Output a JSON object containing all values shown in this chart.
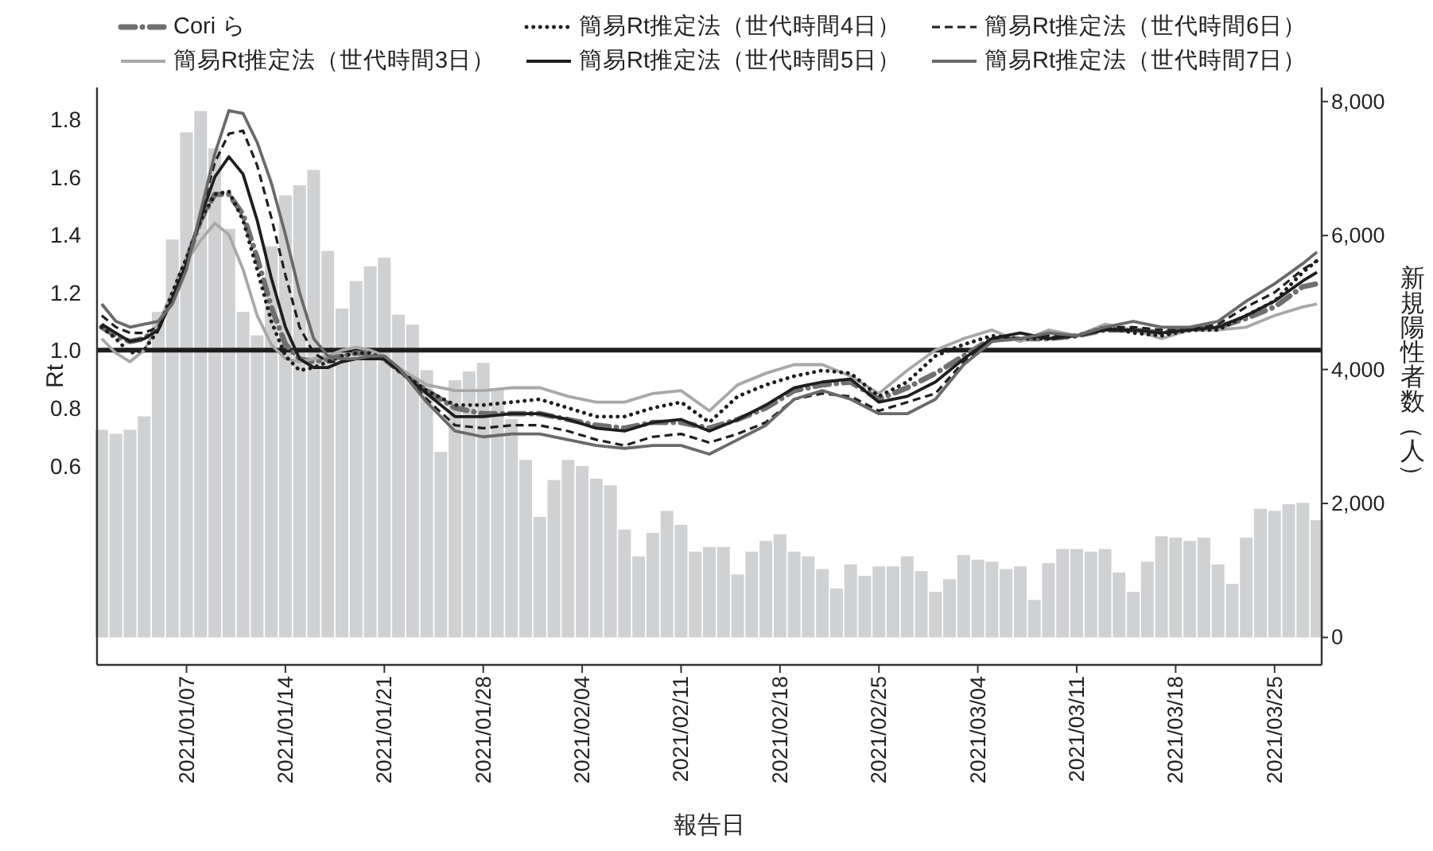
{
  "chart_data": {
    "type": "line",
    "xlabel": "報告日",
    "ylabel": "Rt",
    "y2label": "新規陽性者数（人）",
    "legend": "top",
    "x": [
      "2021-01-01",
      "2021-01-02",
      "2021-01-03",
      "2021-01-04",
      "2021-01-05",
      "2021-01-06",
      "2021-01-07",
      "2021-01-08",
      "2021-01-09",
      "2021-01-10",
      "2021-01-11",
      "2021-01-12",
      "2021-01-13",
      "2021-01-14",
      "2021-01-15",
      "2021-01-16",
      "2021-01-17",
      "2021-01-18",
      "2021-01-19",
      "2021-01-20",
      "2021-01-21",
      "2021-01-22",
      "2021-01-24",
      "2021-01-26",
      "2021-01-28",
      "2021-01-30",
      "2021-02-01",
      "2021-02-03",
      "2021-02-05",
      "2021-02-07",
      "2021-02-09",
      "2021-02-11",
      "2021-02-13",
      "2021-02-15",
      "2021-02-17",
      "2021-02-19",
      "2021-02-21",
      "2021-02-23",
      "2021-02-25",
      "2021-02-27",
      "2021-03-01",
      "2021-03-03",
      "2021-03-05",
      "2021-03-07",
      "2021-03-09",
      "2021-03-11",
      "2021-03-13",
      "2021-03-15",
      "2021-03-17",
      "2021-03-19",
      "2021-03-21",
      "2021-03-23",
      "2021-03-25",
      "2021-03-27",
      "2021-03-28"
    ],
    "xlim": [
      "2020-12-31T16:00",
      "2021-03-28T08:00"
    ],
    "xticks": [
      {
        "value": "2021-01-07",
        "label": "2021/01/07"
      },
      {
        "value": "2021-01-14",
        "label": "2021/01/14"
      },
      {
        "value": "2021-01-21",
        "label": "2021/01/21"
      },
      {
        "value": "2021-01-28",
        "label": "2021/01/28"
      },
      {
        "value": "2021-02-04",
        "label": "2021/02/04"
      },
      {
        "value": "2021-02-11",
        "label": "2021/02/11"
      },
      {
        "value": "2021-02-18",
        "label": "2021/02/18"
      },
      {
        "value": "2021-02-25",
        "label": "2021/02/25"
      },
      {
        "value": "2021-03-04",
        "label": "2021/03/04"
      },
      {
        "value": "2021-03-11",
        "label": "2021/03/11"
      },
      {
        "value": "2021-03-18",
        "label": "2021/03/18"
      },
      {
        "value": "2021-03-25",
        "label": "2021/03/25"
      }
    ],
    "ylim": [
      -0.09,
      1.91
    ],
    "yticks": [
      {
        "value": 0.6,
        "label": "0.6"
      },
      {
        "value": 0.8,
        "label": "0.8"
      },
      {
        "value": 1.0,
        "label": "1.0"
      },
      {
        "value": 1.2,
        "label": "1.2"
      },
      {
        "value": 1.4,
        "label": "1.4"
      },
      {
        "value": 1.6,
        "label": "1.6"
      },
      {
        "value": 1.8,
        "label": "1.8"
      }
    ],
    "y2lim": [
      -410,
      8210
    ],
    "y2ticks": [
      {
        "value": 0,
        "label": "0"
      },
      {
        "value": 2000,
        "label": "2,000"
      },
      {
        "value": 4000,
        "label": "4,000"
      },
      {
        "value": 6000,
        "label": "6,000"
      },
      {
        "value": 8000,
        "label": "8,000"
      }
    ],
    "ref_lines": [
      {
        "axis": "y",
        "value": 1.0,
        "color": "#1e1e1e"
      }
    ],
    "series": [
      {
        "type": "bar",
        "axis": "y2",
        "color": "#d0d1d3",
        "x": [
          "2021-01-01",
          "2021-01-02",
          "2021-01-03",
          "2021-01-04",
          "2021-01-05",
          "2021-01-06",
          "2021-01-07",
          "2021-01-08",
          "2021-01-09",
          "2021-01-10",
          "2021-01-11",
          "2021-01-12",
          "2021-01-13",
          "2021-01-14",
          "2021-01-15",
          "2021-01-16",
          "2021-01-17",
          "2021-01-18",
          "2021-01-19",
          "2021-01-20",
          "2021-01-21",
          "2021-01-22",
          "2021-01-23",
          "2021-01-24",
          "2021-01-25",
          "2021-01-26",
          "2021-01-27",
          "2021-01-28",
          "2021-01-29",
          "2021-01-30",
          "2021-01-31",
          "2021-02-01",
          "2021-02-02",
          "2021-02-03",
          "2021-02-04",
          "2021-02-05",
          "2021-02-06",
          "2021-02-07",
          "2021-02-08",
          "2021-02-09",
          "2021-02-10",
          "2021-02-11",
          "2021-02-12",
          "2021-02-13",
          "2021-02-14",
          "2021-02-15",
          "2021-02-16",
          "2021-02-17",
          "2021-02-18",
          "2021-02-19",
          "2021-02-20",
          "2021-02-21",
          "2021-02-22",
          "2021-02-23",
          "2021-02-24",
          "2021-02-25",
          "2021-02-26",
          "2021-02-27",
          "2021-02-28",
          "2021-03-01",
          "2021-03-02",
          "2021-03-03",
          "2021-03-04",
          "2021-03-05",
          "2021-03-06",
          "2021-03-07",
          "2021-03-08",
          "2021-03-09",
          "2021-03-10",
          "2021-03-11",
          "2021-03-12",
          "2021-03-13",
          "2021-03-14",
          "2021-03-15",
          "2021-03-16",
          "2021-03-17",
          "2021-03-18",
          "2021-03-19",
          "2021-03-20",
          "2021-03-21",
          "2021-03-22",
          "2021-03-23",
          "2021-03-24",
          "2021-03-25",
          "2021-03-26",
          "2021-03-27",
          "2021-03-28"
        ],
        "values": [
          3100,
          3040,
          3100,
          3300,
          4860,
          5940,
          7540,
          7860,
          7300,
          6100,
          4860,
          4510,
          5840,
          6600,
          6750,
          6980,
          5770,
          4910,
          5320,
          5540,
          5670,
          4820,
          4670,
          3990,
          2770,
          3840,
          3970,
          4100,
          3700,
          3260,
          2650,
          1800,
          2350,
          2650,
          2560,
          2370,
          2270,
          1610,
          1210,
          1560,
          1890,
          1680,
          1280,
          1350,
          1350,
          940,
          1280,
          1440,
          1540,
          1280,
          1210,
          1020,
          730,
          1090,
          920,
          1060,
          1060,
          1210,
          990,
          680,
          870,
          1230,
          1160,
          1130,
          1020,
          1060,
          560,
          1110,
          1320,
          1320,
          1280,
          1320,
          970,
          680,
          1130,
          1510,
          1490,
          1440,
          1490,
          1090,
          800,
          1490,
          1920,
          1890,
          1990,
          2010,
          1750
        ]
      },
      {
        "name": "Cori ら",
        "color": "#707070",
        "line_style": "dashdot",
        "values": [
          1.08,
          1.05,
          1.03,
          1.04,
          1.08,
          1.19,
          1.31,
          1.45,
          1.54,
          1.54,
          1.47,
          1.32,
          1.15,
          1.02,
          0.97,
          0.96,
          0.97,
          0.98,
          0.99,
          0.99,
          0.97,
          0.93,
          0.86,
          0.8,
          0.78,
          0.78,
          0.78,
          0.76,
          0.74,
          0.73,
          0.75,
          0.75,
          0.73,
          0.76,
          0.8,
          0.86,
          0.88,
          0.89,
          0.83,
          0.87,
          0.92,
          0.98,
          1.04,
          1.04,
          1.04,
          1.05,
          1.07,
          1.07,
          1.06,
          1.07,
          1.08,
          1.11,
          1.15,
          1.22,
          1.23
        ]
      },
      {
        "name": "簡易Rt推定法（世代時間3日）",
        "color": "#a8a8a8",
        "line_style": "solid",
        "values": [
          1.04,
          0.99,
          0.96,
          1.0,
          1.09,
          1.2,
          1.31,
          1.38,
          1.44,
          1.4,
          1.28,
          1.12,
          1.02,
          0.97,
          0.96,
          0.97,
          0.98,
          1.0,
          1.01,
          1.0,
          0.98,
          0.94,
          0.88,
          0.86,
          0.86,
          0.87,
          0.87,
          0.84,
          0.82,
          0.82,
          0.85,
          0.86,
          0.79,
          0.88,
          0.92,
          0.95,
          0.95,
          0.91,
          0.85,
          0.93,
          1.0,
          1.04,
          1.07,
          1.03,
          1.07,
          1.05,
          1.09,
          1.07,
          1.04,
          1.07,
          1.07,
          1.08,
          1.12,
          1.15,
          1.16
        ]
      },
      {
        "name": "簡易Rt推定法（世代時間4日）",
        "color": "#1e1e1e",
        "line_style": "dotted",
        "values": [
          1.08,
          1.04,
          0.99,
          1.0,
          1.07,
          1.2,
          1.32,
          1.45,
          1.54,
          1.55,
          1.45,
          1.28,
          1.1,
          0.98,
          0.93,
          0.94,
          0.96,
          0.98,
          0.99,
          0.99,
          0.97,
          0.93,
          0.86,
          0.81,
          0.81,
          0.82,
          0.83,
          0.8,
          0.77,
          0.77,
          0.8,
          0.82,
          0.75,
          0.84,
          0.88,
          0.91,
          0.93,
          0.92,
          0.84,
          0.89,
          0.98,
          1.02,
          1.05,
          1.04,
          1.04,
          1.05,
          1.08,
          1.06,
          1.05,
          1.07,
          1.07,
          1.12,
          1.17,
          1.27,
          1.31
        ]
      },
      {
        "name": "簡易Rt推定法（世代時間5日）",
        "color": "#1e1e1e",
        "line_style": "solid",
        "values": [
          1.09,
          1.06,
          1.03,
          1.04,
          1.07,
          1.18,
          1.3,
          1.46,
          1.6,
          1.67,
          1.61,
          1.45,
          1.25,
          1.08,
          0.97,
          0.94,
          0.94,
          0.96,
          0.97,
          0.97,
          0.97,
          0.93,
          0.85,
          0.77,
          0.77,
          0.78,
          0.78,
          0.76,
          0.73,
          0.72,
          0.75,
          0.76,
          0.72,
          0.76,
          0.81,
          0.87,
          0.89,
          0.9,
          0.82,
          0.84,
          0.89,
          0.97,
          1.04,
          1.06,
          1.04,
          1.05,
          1.07,
          1.07,
          1.06,
          1.07,
          1.08,
          1.12,
          1.17,
          1.24,
          1.27
        ]
      },
      {
        "name": "簡易Rt推定法（世代時間6日）",
        "color": "#1e1e1e",
        "line_style": "dashed",
        "values": [
          1.12,
          1.08,
          1.06,
          1.06,
          1.08,
          1.17,
          1.29,
          1.47,
          1.65,
          1.75,
          1.76,
          1.64,
          1.46,
          1.26,
          1.08,
          0.99,
          0.96,
          0.96,
          0.97,
          0.98,
          0.97,
          0.94,
          0.83,
          0.74,
          0.73,
          0.74,
          0.74,
          0.72,
          0.69,
          0.67,
          0.7,
          0.71,
          0.68,
          0.71,
          0.75,
          0.83,
          0.85,
          0.84,
          0.79,
          0.82,
          0.85,
          0.96,
          1.04,
          1.04,
          1.05,
          1.05,
          1.08,
          1.08,
          1.07,
          1.07,
          1.09,
          1.15,
          1.2,
          1.28,
          1.31
        ]
      },
      {
        "name": "簡易Rt推定法（世代時間7日）",
        "color": "#6a6a6a",
        "line_style": "solid",
        "values": [
          1.16,
          1.1,
          1.08,
          1.09,
          1.1,
          1.16,
          1.28,
          1.48,
          1.68,
          1.83,
          1.82,
          1.72,
          1.58,
          1.4,
          1.2,
          1.04,
          0.98,
          0.97,
          0.97,
          0.98,
          0.98,
          0.94,
          0.82,
          0.72,
          0.7,
          0.71,
          0.71,
          0.69,
          0.67,
          0.66,
          0.67,
          0.67,
          0.64,
          0.69,
          0.74,
          0.83,
          0.86,
          0.83,
          0.78,
          0.78,
          0.83,
          0.95,
          1.03,
          1.04,
          1.06,
          1.05,
          1.08,
          1.1,
          1.08,
          1.08,
          1.1,
          1.17,
          1.23,
          1.3,
          1.34
        ]
      }
    ]
  }
}
